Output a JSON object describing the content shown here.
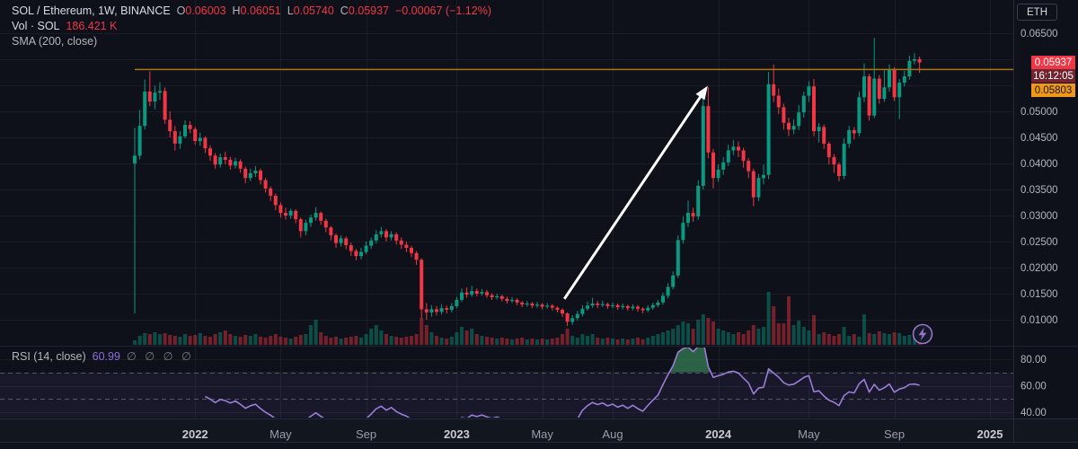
{
  "header": {
    "symbol": "SOL / Ethereum, 1W, BINANCE",
    "o_label": "O",
    "o": "0.06003",
    "h_label": "H",
    "h": "0.06051",
    "l_label": "L",
    "l": "0.05740",
    "c_label": "C",
    "c": "0.05937",
    "change": "−0.00067 (−1.12%)",
    "vol_label": "Vol · SOL",
    "vol_value": "186.421 K",
    "sma_label": "SMA (200, close)"
  },
  "price_scale": {
    "currency": "ETH",
    "labels": [
      "0.06500",
      "0.06000",
      "0.05500",
      "0.05000",
      "0.04500",
      "0.04000",
      "0.03500",
      "0.03000",
      "0.02500",
      "0.02000",
      "0.01500",
      "0.01000"
    ],
    "last_price": "0.05937",
    "countdown": "16:12:05",
    "sma_value": "0.05803"
  },
  "rsi_pane": {
    "label": "RSI (14, close)",
    "value": "60.99",
    "empty_sets": "∅ ∅ ∅ ∅",
    "ticks": [
      "80.00",
      "60.00",
      "40.00"
    ],
    "tick_values": [
      80,
      60,
      40
    ],
    "bands": [
      70,
      50
    ]
  },
  "time_axis": {
    "ticks": [
      {
        "label": "2022",
        "week": 12,
        "major": true
      },
      {
        "label": "May",
        "week": 29,
        "major": false
      },
      {
        "label": "Sep",
        "week": 46,
        "major": false
      },
      {
        "label": "2023",
        "week": 64,
        "major": true
      },
      {
        "label": "May",
        "week": 81,
        "major": false
      },
      {
        "label": "Aug",
        "week": 95,
        "major": false
      },
      {
        "label": "2024",
        "week": 116,
        "major": true
      },
      {
        "label": "May",
        "week": 134,
        "major": false
      },
      {
        "label": "Sep",
        "week": 151,
        "major": false
      },
      {
        "label": "2025",
        "week": 170,
        "major": true
      }
    ]
  },
  "colors": {
    "up": "#089981",
    "down": "#f23645",
    "vol_up": "rgba(8,153,129,0.45)",
    "vol_down": "rgba(242,54,69,0.45)",
    "sma": "#a87414",
    "rsi": "#9b7dd8",
    "rsi_band_fill": "rgba(126,87,194,0.10)",
    "rsi_overbought_fill": "rgba(64,153,98,0.6)",
    "arrow": "#ffffff",
    "grid": "rgba(255,255,255,0.05)",
    "axis_text": "#b2b5be"
  },
  "chart_data": {
    "type": "candlestick",
    "title": "SOL / Ethereum 1W BINANCE",
    "price_axis": {
      "top_price": 0.065,
      "gridline_step": 0.005,
      "bottom_price": 0.01
    },
    "sma200_level": 0.05803,
    "rsi_period": 14,
    "rsi_last": 60.99,
    "arrow_annotation": {
      "from_week": 85.4,
      "from_price": 0.014,
      "to_week": 113.9,
      "to_price": 0.0549
    },
    "candles": [
      [
        0.04,
        0.0468,
        0.0112,
        0.0415,
        5
      ],
      [
        0.0415,
        0.0503,
        0.0408,
        0.0472,
        10
      ],
      [
        0.0472,
        0.0561,
        0.0465,
        0.0538,
        13
      ],
      [
        0.0538,
        0.0577,
        0.051,
        0.0519,
        12
      ],
      [
        0.0519,
        0.0549,
        0.0504,
        0.0536,
        14
      ],
      [
        0.0536,
        0.0556,
        0.0522,
        0.0539,
        12
      ],
      [
        0.0539,
        0.0546,
        0.0476,
        0.0484,
        13
      ],
      [
        0.0484,
        0.05,
        0.045,
        0.0462,
        11
      ],
      [
        0.0462,
        0.0472,
        0.0425,
        0.0438,
        10
      ],
      [
        0.0438,
        0.0462,
        0.0428,
        0.0452,
        9
      ],
      [
        0.0452,
        0.0483,
        0.0448,
        0.0474,
        12
      ],
      [
        0.0474,
        0.0481,
        0.0458,
        0.0466,
        10
      ],
      [
        0.0466,
        0.047,
        0.0436,
        0.0443,
        11
      ],
      [
        0.0443,
        0.0459,
        0.0434,
        0.0449,
        13
      ],
      [
        0.0449,
        0.0452,
        0.042,
        0.0429,
        10
      ],
      [
        0.0429,
        0.0435,
        0.0405,
        0.0415,
        9
      ],
      [
        0.0415,
        0.042,
        0.039,
        0.0398,
        12
      ],
      [
        0.0398,
        0.0419,
        0.0392,
        0.0412,
        14
      ],
      [
        0.0412,
        0.0422,
        0.0398,
        0.0407,
        16
      ],
      [
        0.0407,
        0.0413,
        0.0388,
        0.0396,
        12
      ],
      [
        0.0396,
        0.0411,
        0.039,
        0.0404,
        10
      ],
      [
        0.0404,
        0.0408,
        0.0382,
        0.039,
        9
      ],
      [
        0.039,
        0.0394,
        0.0362,
        0.0372,
        11
      ],
      [
        0.0372,
        0.039,
        0.0366,
        0.0381,
        10
      ],
      [
        0.0381,
        0.0395,
        0.0374,
        0.0386,
        12
      ],
      [
        0.0386,
        0.039,
        0.036,
        0.0368,
        9
      ],
      [
        0.0368,
        0.0372,
        0.0344,
        0.0352,
        8
      ],
      [
        0.0352,
        0.0356,
        0.0328,
        0.0338,
        10
      ],
      [
        0.0338,
        0.0342,
        0.031,
        0.032,
        12
      ],
      [
        0.032,
        0.0325,
        0.0296,
        0.0305,
        9
      ],
      [
        0.0305,
        0.0315,
        0.0292,
        0.03,
        8
      ],
      [
        0.03,
        0.0313,
        0.0294,
        0.0309,
        7
      ],
      [
        0.0309,
        0.0312,
        0.0285,
        0.0293,
        9
      ],
      [
        0.0293,
        0.0296,
        0.0258,
        0.027,
        11
      ],
      [
        0.027,
        0.0292,
        0.0262,
        0.0286,
        12
      ],
      [
        0.0286,
        0.0302,
        0.0278,
        0.0296,
        22
      ],
      [
        0.0296,
        0.0316,
        0.029,
        0.0305,
        28
      ],
      [
        0.0305,
        0.0308,
        0.0282,
        0.029,
        14
      ],
      [
        0.029,
        0.0294,
        0.0268,
        0.0277,
        10
      ],
      [
        0.0277,
        0.028,
        0.0252,
        0.0262,
        8
      ],
      [
        0.0262,
        0.0266,
        0.0238,
        0.0247,
        9
      ],
      [
        0.0247,
        0.0262,
        0.024,
        0.0256,
        7
      ],
      [
        0.0256,
        0.026,
        0.0235,
        0.0243,
        8
      ],
      [
        0.0243,
        0.0248,
        0.0222,
        0.0232,
        9
      ],
      [
        0.0232,
        0.0236,
        0.0214,
        0.0222,
        10
      ],
      [
        0.0222,
        0.0238,
        0.0216,
        0.023,
        8
      ],
      [
        0.023,
        0.025,
        0.0226,
        0.0242,
        12
      ],
      [
        0.0242,
        0.0258,
        0.0236,
        0.0252,
        18
      ],
      [
        0.0252,
        0.0272,
        0.0246,
        0.0264,
        22
      ],
      [
        0.0264,
        0.0278,
        0.0258,
        0.027,
        16
      ],
      [
        0.027,
        0.0274,
        0.025,
        0.0258,
        12
      ],
      [
        0.0258,
        0.027,
        0.0252,
        0.0264,
        10
      ],
      [
        0.0264,
        0.0268,
        0.0244,
        0.0252,
        9
      ],
      [
        0.0252,
        0.0258,
        0.0236,
        0.0244,
        8
      ],
      [
        0.0244,
        0.025,
        0.023,
        0.0238,
        9
      ],
      [
        0.0238,
        0.0242,
        0.022,
        0.0228,
        10
      ],
      [
        0.0228,
        0.0232,
        0.0205,
        0.0215,
        12
      ],
      [
        0.0215,
        0.0218,
        0.0103,
        0.012,
        30
      ],
      [
        0.012,
        0.0132,
        0.01,
        0.0114,
        22
      ],
      [
        0.0114,
        0.0128,
        0.0106,
        0.012,
        14
      ],
      [
        0.012,
        0.0126,
        0.0108,
        0.0115,
        10
      ],
      [
        0.0115,
        0.013,
        0.011,
        0.0122,
        8
      ],
      [
        0.0122,
        0.0127,
        0.0112,
        0.0119,
        7
      ],
      [
        0.0119,
        0.0132,
        0.0114,
        0.0126,
        9
      ],
      [
        0.0126,
        0.0144,
        0.0122,
        0.0138,
        14
      ],
      [
        0.0138,
        0.016,
        0.0134,
        0.0152,
        20
      ],
      [
        0.0152,
        0.0162,
        0.0142,
        0.0148,
        16
      ],
      [
        0.0148,
        0.0165,
        0.0144,
        0.0155,
        18
      ],
      [
        0.0155,
        0.016,
        0.0145,
        0.015,
        12
      ],
      [
        0.015,
        0.0159,
        0.0146,
        0.0153,
        10
      ],
      [
        0.0153,
        0.0157,
        0.0142,
        0.0147,
        9
      ],
      [
        0.0147,
        0.0151,
        0.0138,
        0.0143,
        8
      ],
      [
        0.0143,
        0.015,
        0.0139,
        0.0145,
        7
      ],
      [
        0.0145,
        0.0148,
        0.0135,
        0.014,
        8
      ],
      [
        0.014,
        0.0144,
        0.0131,
        0.0136,
        7
      ],
      [
        0.0136,
        0.0143,
        0.0132,
        0.0138,
        6
      ],
      [
        0.0138,
        0.0141,
        0.0128,
        0.0133,
        7
      ],
      [
        0.0133,
        0.0136,
        0.0124,
        0.0129,
        8
      ],
      [
        0.0129,
        0.0136,
        0.0125,
        0.0131,
        6
      ],
      [
        0.0131,
        0.0134,
        0.0122,
        0.0127,
        7
      ],
      [
        0.0127,
        0.0134,
        0.0123,
        0.0129,
        6
      ],
      [
        0.0129,
        0.0132,
        0.012,
        0.0125,
        7
      ],
      [
        0.0125,
        0.0132,
        0.0121,
        0.0127,
        6
      ],
      [
        0.0127,
        0.013,
        0.0118,
        0.0123,
        7
      ],
      [
        0.0123,
        0.0126,
        0.0114,
        0.0119,
        8
      ],
      [
        0.0119,
        0.0122,
        0.0105,
        0.0112,
        12
      ],
      [
        0.0112,
        0.0114,
        0.0088,
        0.0096,
        18
      ],
      [
        0.0096,
        0.0109,
        0.009,
        0.0103,
        10
      ],
      [
        0.0103,
        0.0117,
        0.0098,
        0.0111,
        8
      ],
      [
        0.0111,
        0.0128,
        0.0106,
        0.0121,
        12
      ],
      [
        0.0121,
        0.0135,
        0.0117,
        0.0127,
        10
      ],
      [
        0.0127,
        0.0142,
        0.0123,
        0.0131,
        12
      ],
      [
        0.0131,
        0.0136,
        0.0122,
        0.0128,
        8
      ],
      [
        0.0128,
        0.0136,
        0.0124,
        0.013,
        7
      ],
      [
        0.013,
        0.0133,
        0.0121,
        0.0126,
        8
      ],
      [
        0.0126,
        0.0133,
        0.0122,
        0.0128,
        7
      ],
      [
        0.0128,
        0.0131,
        0.0119,
        0.0124,
        6
      ],
      [
        0.0124,
        0.0131,
        0.012,
        0.0126,
        7
      ],
      [
        0.0126,
        0.0129,
        0.0117,
        0.0122,
        6
      ],
      [
        0.0122,
        0.013,
        0.0118,
        0.0125,
        7
      ],
      [
        0.0125,
        0.0128,
        0.0115,
        0.0121,
        8
      ],
      [
        0.0121,
        0.0124,
        0.0112,
        0.0118,
        6
      ],
      [
        0.0118,
        0.0128,
        0.0114,
        0.0123,
        8
      ],
      [
        0.0123,
        0.0133,
        0.0119,
        0.0128,
        10
      ],
      [
        0.0128,
        0.0138,
        0.0124,
        0.0133,
        12
      ],
      [
        0.0133,
        0.0152,
        0.0129,
        0.0146,
        14
      ],
      [
        0.0146,
        0.017,
        0.0141,
        0.0163,
        16
      ],
      [
        0.0163,
        0.0193,
        0.0158,
        0.0185,
        18
      ],
      [
        0.0185,
        0.0262,
        0.018,
        0.0253,
        22
      ],
      [
        0.0253,
        0.0298,
        0.0246,
        0.0286,
        26
      ],
      [
        0.0286,
        0.0329,
        0.0278,
        0.0305,
        24
      ],
      [
        0.0305,
        0.0315,
        0.0288,
        0.0298,
        18
      ],
      [
        0.0298,
        0.0368,
        0.0292,
        0.0357,
        28
      ],
      [
        0.0357,
        0.0528,
        0.035,
        0.051,
        34
      ],
      [
        0.051,
        0.0546,
        0.041,
        0.0421,
        30
      ],
      [
        0.0421,
        0.0428,
        0.0352,
        0.0372,
        26
      ],
      [
        0.0372,
        0.0398,
        0.0365,
        0.0388,
        18
      ],
      [
        0.0388,
        0.0412,
        0.0378,
        0.0402,
        16
      ],
      [
        0.0402,
        0.0436,
        0.0395,
        0.0425,
        14
      ],
      [
        0.0425,
        0.0445,
        0.0416,
        0.0432,
        12
      ],
      [
        0.0432,
        0.0442,
        0.0412,
        0.0425,
        14
      ],
      [
        0.0425,
        0.043,
        0.0392,
        0.0405,
        12
      ],
      [
        0.0405,
        0.041,
        0.0372,
        0.0385,
        16
      ],
      [
        0.0385,
        0.039,
        0.0318,
        0.0335,
        22
      ],
      [
        0.0335,
        0.038,
        0.0328,
        0.0372,
        18
      ],
      [
        0.0372,
        0.0398,
        0.036,
        0.0378,
        20
      ],
      [
        0.0378,
        0.0576,
        0.037,
        0.0552,
        59
      ],
      [
        0.0552,
        0.059,
        0.0518,
        0.053,
        43
      ],
      [
        0.053,
        0.0544,
        0.0495,
        0.0508,
        24
      ],
      [
        0.0508,
        0.0515,
        0.0465,
        0.0478,
        24
      ],
      [
        0.0478,
        0.0488,
        0.0452,
        0.0465,
        54
      ],
      [
        0.0465,
        0.0485,
        0.0456,
        0.0472,
        22
      ],
      [
        0.0472,
        0.0512,
        0.0464,
        0.0498,
        27
      ],
      [
        0.0498,
        0.0538,
        0.0488,
        0.053,
        20
      ],
      [
        0.053,
        0.0558,
        0.0518,
        0.0548,
        16
      ],
      [
        0.0548,
        0.0562,
        0.0452,
        0.0462,
        33
      ],
      [
        0.0462,
        0.0478,
        0.044,
        0.047,
        12
      ],
      [
        0.047,
        0.0475,
        0.0428,
        0.0438,
        14
      ],
      [
        0.0438,
        0.0442,
        0.0398,
        0.0412,
        12
      ],
      [
        0.0412,
        0.0418,
        0.0382,
        0.0398,
        10
      ],
      [
        0.0398,
        0.0402,
        0.0366,
        0.0376,
        12
      ],
      [
        0.0376,
        0.0448,
        0.037,
        0.0438,
        20
      ],
      [
        0.0438,
        0.0472,
        0.043,
        0.0464,
        10
      ],
      [
        0.0464,
        0.047,
        0.0446,
        0.0458,
        12
      ],
      [
        0.0458,
        0.0538,
        0.0452,
        0.0527,
        9
      ],
      [
        0.0527,
        0.0592,
        0.0518,
        0.0567,
        34
      ],
      [
        0.0567,
        0.0572,
        0.0482,
        0.0492,
        13
      ],
      [
        0.0492,
        0.0641,
        0.0487,
        0.0563,
        12
      ],
      [
        0.0563,
        0.057,
        0.0515,
        0.0524,
        15
      ],
      [
        0.0524,
        0.0581,
        0.0518,
        0.0546,
        13
      ],
      [
        0.0546,
        0.059,
        0.0538,
        0.0581,
        12
      ],
      [
        0.0581,
        0.0585,
        0.052,
        0.0527,
        14
      ],
      [
        0.0527,
        0.0562,
        0.0485,
        0.0555,
        13
      ],
      [
        0.0555,
        0.0578,
        0.0548,
        0.0567,
        10
      ],
      [
        0.0567,
        0.0607,
        0.0561,
        0.0597,
        11
      ],
      [
        0.0597,
        0.0612,
        0.059,
        0.06,
        13
      ],
      [
        0.06003,
        0.06051,
        0.0574,
        0.05937,
        8
      ]
    ]
  }
}
